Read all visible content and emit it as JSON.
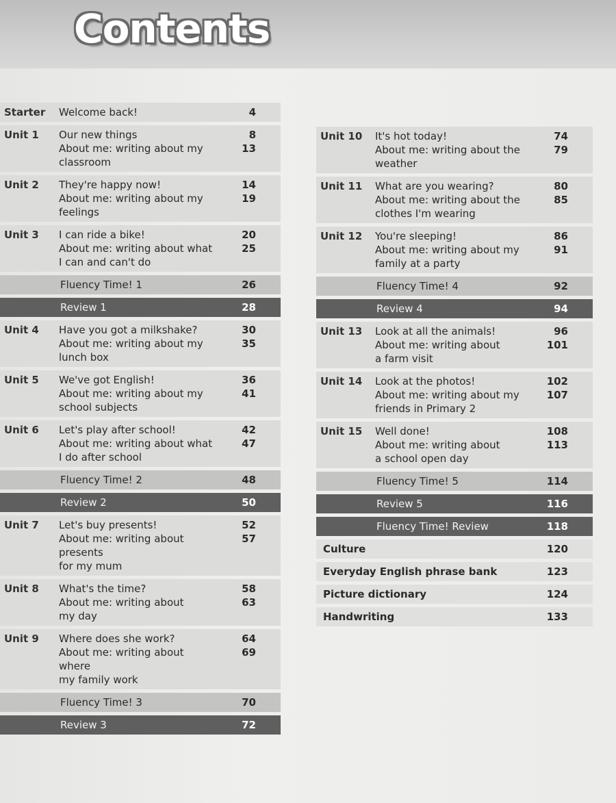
{
  "title": "Contents",
  "left": [
    {
      "type": "unit",
      "label": "Starter",
      "lines": [
        "Welcome back!"
      ],
      "pages": [
        "4"
      ]
    },
    {
      "type": "unit",
      "label": "Unit 1",
      "lines": [
        "Our new things",
        "About me: writing about my",
        "classroom"
      ],
      "pages": [
        "8",
        "13"
      ]
    },
    {
      "type": "unit",
      "label": "Unit 2",
      "lines": [
        "They're happy now!",
        "About me: writing about my",
        "feelings"
      ],
      "pages": [
        "14",
        "19"
      ]
    },
    {
      "type": "unit",
      "label": "Unit 3",
      "lines": [
        "I can ride a bike!",
        "About me: writing about what",
        "I can and can't do"
      ],
      "pages": [
        "20",
        "25"
      ]
    },
    {
      "type": "fluency",
      "label": "",
      "lines": [
        "Fluency Time! 1"
      ],
      "pages": [
        "26"
      ]
    },
    {
      "type": "review",
      "label": "",
      "lines": [
        "Review 1"
      ],
      "pages": [
        "28"
      ]
    },
    {
      "type": "unit",
      "label": "Unit 4",
      "lines": [
        "Have you got a milkshake?",
        "About me: writing about my",
        "lunch box"
      ],
      "pages": [
        "30",
        "35"
      ]
    },
    {
      "type": "unit",
      "label": "Unit 5",
      "lines": [
        "We've got English!",
        "About me: writing about my",
        "school subjects"
      ],
      "pages": [
        "36",
        "41"
      ]
    },
    {
      "type": "unit",
      "label": "Unit 6",
      "lines": [
        "Let's play after school!",
        "About me: writing about what",
        "I do after school"
      ],
      "pages": [
        "42",
        "47"
      ]
    },
    {
      "type": "fluency",
      "label": "",
      "lines": [
        "Fluency Time! 2"
      ],
      "pages": [
        "48"
      ]
    },
    {
      "type": "review",
      "label": "",
      "lines": [
        "Review 2"
      ],
      "pages": [
        "50"
      ]
    },
    {
      "type": "unit",
      "label": "Unit 7",
      "lines": [
        "Let's buy presents!",
        "About me: writing about presents",
        "for my mum"
      ],
      "pages": [
        "52",
        "57"
      ]
    },
    {
      "type": "unit",
      "label": "Unit 8",
      "lines": [
        "What's the time?",
        "About me: writing about",
        "my day"
      ],
      "pages": [
        "58",
        "63"
      ]
    },
    {
      "type": "unit",
      "label": "Unit 9",
      "lines": [
        "Where does she work?",
        "About me: writing about where",
        "my family work"
      ],
      "pages": [
        "64",
        "69"
      ]
    },
    {
      "type": "fluency",
      "label": "",
      "lines": [
        "Fluency Time! 3"
      ],
      "pages": [
        "70"
      ]
    },
    {
      "type": "review",
      "label": "",
      "lines": [
        "Review 3"
      ],
      "pages": [
        "72"
      ]
    }
  ],
  "right": [
    {
      "type": "unit",
      "label": "Unit 10",
      "lines": [
        "It's hot today!",
        "About me: writing about the",
        "weather"
      ],
      "pages": [
        "74",
        "79"
      ]
    },
    {
      "type": "unit",
      "label": "Unit 11",
      "lines": [
        "What are you wearing?",
        "About me: writing about the",
        "clothes I'm wearing"
      ],
      "pages": [
        "80",
        "85"
      ]
    },
    {
      "type": "unit",
      "label": "Unit 12",
      "lines": [
        "You're sleeping!",
        "About me: writing about my",
        "family at a party"
      ],
      "pages": [
        "86",
        "91"
      ]
    },
    {
      "type": "fluency",
      "label": "",
      "lines": [
        "Fluency Time! 4"
      ],
      "pages": [
        "92"
      ]
    },
    {
      "type": "review",
      "label": "",
      "lines": [
        "Review 4"
      ],
      "pages": [
        "94"
      ]
    },
    {
      "type": "unit",
      "label": "Unit 13",
      "lines": [
        "Look at all the animals!",
        "About me: writing about",
        "a farm visit"
      ],
      "pages": [
        "96",
        "101"
      ]
    },
    {
      "type": "unit",
      "label": "Unit 14",
      "lines": [
        "Look at the photos!",
        "About me: writing about my",
        "friends in Primary 2"
      ],
      "pages": [
        "102",
        "107"
      ]
    },
    {
      "type": "unit",
      "label": "Unit 15",
      "lines": [
        "Well done!",
        "About me: writing about",
        "a school open day"
      ],
      "pages": [
        "108",
        "113"
      ]
    },
    {
      "type": "fluency",
      "label": "",
      "lines": [
        "Fluency Time! 5"
      ],
      "pages": [
        "114"
      ]
    },
    {
      "type": "review",
      "label": "",
      "lines": [
        "Review 5"
      ],
      "pages": [
        "116"
      ]
    },
    {
      "type": "review",
      "label": "",
      "lines": [
        "Fluency Time! Review"
      ],
      "pages": [
        "118"
      ]
    },
    {
      "type": "extra",
      "label": "",
      "lines": [
        "Culture"
      ],
      "pages": [
        "120"
      ]
    },
    {
      "type": "extra",
      "label": "",
      "lines": [
        "Everyday English phrase bank"
      ],
      "pages": [
        "123"
      ]
    },
    {
      "type": "extra",
      "label": "",
      "lines": [
        "Picture dictionary"
      ],
      "pages": [
        "124"
      ]
    },
    {
      "type": "extra",
      "label": "",
      "lines": [
        "Handwriting"
      ],
      "pages": [
        "133"
      ]
    }
  ],
  "colors": {
    "review_band": "#5f5f5f",
    "fluency_band": "#c4c4c3",
    "unit_band": "#dcdcdb"
  }
}
